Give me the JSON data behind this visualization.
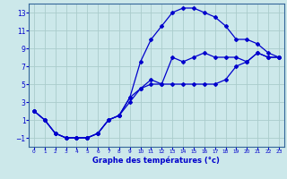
{
  "xlabel": "Graphe des températures (°c)",
  "background_color": "#cce8ea",
  "grid_color": "#aacccc",
  "line_color": "#0000cc",
  "spine_color": "#336699",
  "xlim": [
    -0.5,
    23.5
  ],
  "ylim": [
    -2,
    14
  ],
  "yticks": [
    -1,
    1,
    3,
    5,
    7,
    9,
    11,
    13
  ],
  "xticks": [
    0,
    1,
    2,
    3,
    4,
    5,
    6,
    7,
    8,
    9,
    10,
    11,
    12,
    13,
    14,
    15,
    16,
    17,
    18,
    19,
    20,
    21,
    22,
    23
  ],
  "line_high_x": [
    0,
    1,
    2,
    3,
    4,
    5,
    6,
    7,
    8,
    9,
    10,
    11,
    12,
    13,
    14,
    15,
    16,
    17,
    18,
    19,
    20,
    21,
    22,
    23
  ],
  "line_high_y": [
    2.0,
    1.0,
    -0.5,
    -1.0,
    -1.0,
    -1.0,
    -0.5,
    1.0,
    1.5,
    3.5,
    7.5,
    10.0,
    11.5,
    13.0,
    13.5,
    13.5,
    13.0,
    12.5,
    11.5,
    10.0,
    10.0,
    9.5,
    8.5,
    8.0
  ],
  "line_mid_x": [
    0,
    1,
    2,
    3,
    4,
    5,
    6,
    7,
    8,
    9,
    10,
    11,
    12,
    13,
    14,
    15,
    16,
    17,
    18,
    19,
    20,
    21,
    22,
    23
  ],
  "line_mid_y": [
    2.0,
    1.0,
    -0.5,
    -1.0,
    -1.0,
    -1.0,
    -0.5,
    1.0,
    1.5,
    3.5,
    4.5,
    5.0,
    5.0,
    8.0,
    7.5,
    8.0,
    8.5,
    8.0,
    8.0,
    8.0,
    7.5,
    8.5,
    8.0,
    8.0
  ],
  "line_low_x": [
    0,
    1,
    2,
    3,
    4,
    5,
    6,
    7,
    8,
    9,
    10,
    11,
    12,
    13,
    14,
    15,
    16,
    17,
    18,
    19,
    20,
    21,
    22,
    23
  ],
  "line_low_y": [
    2.0,
    1.0,
    -0.5,
    -1.0,
    -1.0,
    -1.0,
    -0.5,
    1.0,
    1.5,
    3.0,
    4.5,
    5.5,
    5.0,
    5.0,
    5.0,
    5.0,
    5.0,
    5.0,
    5.5,
    7.0,
    7.5,
    8.5,
    8.0,
    8.0
  ]
}
